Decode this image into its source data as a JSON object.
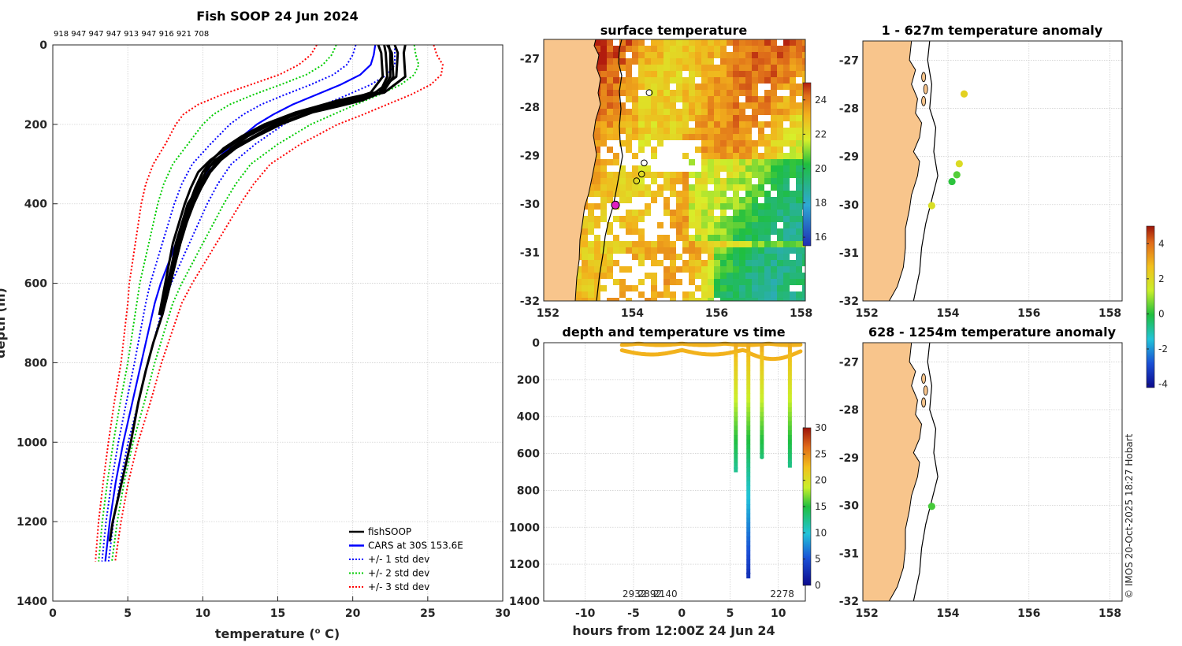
{
  "chart_data": [
    {
      "id": "profile",
      "type": "line",
      "title": "Fish SOOP 24 Jun 2024",
      "top_labels": "918 947 947 947 913 947 916 921 708",
      "xlabel": "temperature (",
      "xlabel_sup": "o",
      "xlabel_end": " C)",
      "ylabel": "depth (m)",
      "xlim": [
        0,
        30
      ],
      "ylim": [
        0,
        1400
      ],
      "xticks": [
        "0",
        "5",
        "10",
        "15",
        "20",
        "25",
        "30"
      ],
      "yticks": [
        "0",
        "200",
        "400",
        "600",
        "800",
        "1000",
        "1200",
        "1400"
      ],
      "legend": [
        {
          "label": "fishSOOP",
          "color": "#000000",
          "style": "solid"
        },
        {
          "label": "CARS at 30S 153.6E",
          "color": "#0000ff",
          "style": "solid"
        },
        {
          "label": "+/- 1 std dev",
          "color": "#0000ff",
          "style": "dotted"
        },
        {
          "label": "+/- 2 std dev",
          "color": "#00cc00",
          "style": "dotted"
        },
        {
          "label": "+/- 3 std dev",
          "color": "#ff0000",
          "style": "dotted"
        }
      ],
      "depth": [
        0,
        25,
        50,
        75,
        100,
        125,
        150,
        175,
        200,
        250,
        300,
        350,
        400,
        450,
        500,
        550,
        600,
        650,
        700,
        800,
        900,
        1000,
        1100,
        1200,
        1300
      ],
      "cars_mean": [
        21.5,
        21.4,
        21.2,
        20.5,
        19.2,
        17.6,
        16.0,
        14.7,
        13.6,
        12.0,
        10.6,
        9.8,
        9.2,
        8.7,
        8.2,
        7.7,
        7.2,
        6.8,
        6.5,
        5.9,
        5.3,
        4.7,
        4.2,
        3.8,
        3.5
      ],
      "cars_std": [
        1.3,
        1.4,
        1.6,
        1.8,
        2.0,
        2.1,
        2.1,
        2.0,
        1.8,
        1.5,
        1.3,
        1.2,
        1.1,
        1.0,
        0.9,
        0.8,
        0.7,
        0.6,
        0.55,
        0.45,
        0.4,
        0.33,
        0.28,
        0.25,
        0.22
      ],
      "fish_profiles": [
        {
          "depth": [
            0,
            20,
            80,
            120,
            140,
            155,
            170,
            200,
            230,
            260,
            290,
            320,
            360,
            400,
            450,
            500,
            560,
            620,
            680,
            750,
            820,
            900,
            1000,
            1100,
            1200,
            1250
          ],
          "temp": [
            22.3,
            22.6,
            22.7,
            22.0,
            19.8,
            18.2,
            16.6,
            14.5,
            13.0,
            11.9,
            11.1,
            10.4,
            9.8,
            9.3,
            8.9,
            8.5,
            8.1,
            7.7,
            7.3,
            6.7,
            6.2,
            5.7,
            5.2,
            4.6,
            4.0,
            3.8
          ]
        },
        {
          "depth": [
            0,
            20,
            80,
            120,
            140,
            155,
            170,
            200,
            230,
            260,
            290,
            320,
            360,
            400,
            450,
            500,
            560,
            620,
            680
          ],
          "temp": [
            23.5,
            23.4,
            23.5,
            22.1,
            19.4,
            17.8,
            16.4,
            14.8,
            13.4,
            12.1,
            11.0,
            10.0,
            9.5,
            9.1,
            8.7,
            8.3,
            8.0,
            7.6,
            7.3
          ]
        },
        {
          "depth": [
            0,
            20,
            80,
            120,
            140,
            155,
            170,
            200,
            230,
            260,
            290,
            320,
            360,
            400,
            450,
            500,
            560,
            620,
            680
          ],
          "temp": [
            22.8,
            23.0,
            22.9,
            21.5,
            19.0,
            17.6,
            16.2,
            14.1,
            12.6,
            11.4,
            10.6,
            10.0,
            9.6,
            9.2,
            8.8,
            8.4,
            8.0,
            7.6,
            7.2
          ]
        },
        {
          "depth": [
            0,
            20,
            80,
            120,
            140,
            155,
            170,
            200,
            230,
            260,
            290,
            320,
            360,
            400,
            450,
            500,
            560,
            620,
            680
          ],
          "temp": [
            22.1,
            22.2,
            22.3,
            21.8,
            20.2,
            18.6,
            17.0,
            15.0,
            13.4,
            12.0,
            10.8,
            10.2,
            9.7,
            9.0,
            8.6,
            8.2,
            7.9,
            7.5,
            7.1
          ]
        },
        {
          "depth": [
            0,
            20,
            80,
            120,
            140,
            155,
            170,
            200,
            230,
            260,
            290,
            320,
            360,
            400,
            450,
            500,
            560,
            620,
            680
          ],
          "temp": [
            21.7,
            21.9,
            22.0,
            21.2,
            19.6,
            18.0,
            16.5,
            14.3,
            12.8,
            11.6,
            10.5,
            9.7,
            9.2,
            8.8,
            8.4,
            8.0,
            7.7,
            7.4,
            7.1
          ]
        },
        {
          "depth": [
            0,
            20,
            80,
            120,
            140,
            155,
            170,
            200,
            230,
            260,
            290,
            320,
            360,
            400,
            450,
            500,
            560,
            620,
            680
          ],
          "temp": [
            22.4,
            22.5,
            22.5,
            21.9,
            20.6,
            19.0,
            17.3,
            15.2,
            13.6,
            12.2,
            11.2,
            10.5,
            9.9,
            9.4,
            8.9,
            8.5,
            8.1,
            7.7,
            7.3
          ]
        }
      ]
    },
    {
      "id": "sst",
      "type": "heatmap",
      "title": "surface temperature",
      "xlim": [
        151.9,
        158.1
      ],
      "ylim": [
        -32,
        -26.6
      ],
      "xticks": [
        "152",
        "154",
        "156",
        "158"
      ],
      "yticks": [
        "-27",
        "-28",
        "-29",
        "-30",
        "-31",
        "-32"
      ],
      "colorbar": {
        "range": [
          15.5,
          25.0
        ],
        "ticks": [
          "16",
          "18",
          "20",
          "22",
          "24"
        ]
      },
      "stations": [
        {
          "lon": 154.4,
          "lat": -27.7
        },
        {
          "lon": 154.28,
          "lat": -29.15
        },
        {
          "lon": 154.22,
          "lat": -29.38
        },
        {
          "lon": 154.1,
          "lat": -29.52
        },
        {
          "lon": 153.6,
          "lat": -30.02
        }
      ],
      "cars_site": {
        "lon": 153.6,
        "lat": -30.02
      }
    },
    {
      "id": "anomaly_upper",
      "type": "scatter",
      "title": "1 - 627m temperature anomaly",
      "xlim": [
        151.9,
        158.3
      ],
      "ylim": [
        -32,
        -26.6
      ],
      "xticks": [
        "152",
        "154",
        "156",
        "158"
      ],
      "yticks": [
        "-27",
        "-28",
        "-29",
        "-30",
        "-31",
        "-32"
      ],
      "points": [
        {
          "lon": 154.4,
          "lat": -27.7,
          "anomaly": 2.2
        },
        {
          "lon": 154.28,
          "lat": -29.15,
          "anomaly": 1.9
        },
        {
          "lon": 154.22,
          "lat": -29.38,
          "anomaly": 0.4
        },
        {
          "lon": 154.1,
          "lat": -29.52,
          "anomaly": 0.1
        },
        {
          "lon": 153.6,
          "lat": -30.02,
          "anomaly": 1.8
        }
      ]
    },
    {
      "id": "anomaly_lower",
      "type": "scatter",
      "title": "628 - 1254m temperature anomaly",
      "xlim": [
        151.9,
        158.3
      ],
      "ylim": [
        -32,
        -26.6
      ],
      "xticks": [
        "152",
        "154",
        "156",
        "158"
      ],
      "yticks": [
        "-27",
        "-28",
        "-29",
        "-30",
        "-31",
        "-32"
      ],
      "points": [
        {
          "lon": 153.6,
          "lat": -30.02,
          "anomaly": 0.3
        }
      ],
      "colorbar": {
        "range": [
          -4.2,
          5.0
        ],
        "ticks": [
          "4",
          "2",
          "0",
          "-2",
          "-4"
        ],
        "tick_values": [
          4,
          2,
          0,
          -2,
          -4
        ]
      }
    },
    {
      "id": "timeseries",
      "type": "scatter",
      "title": "depth and temperature vs time",
      "xlabel": "hours from 12:00Z 24 Jun 24",
      "xlim": [
        -14.3,
        12.8
      ],
      "ylim": [
        0,
        1400
      ],
      "xticks": [
        "-10",
        "-5",
        "0",
        "5",
        "10"
      ],
      "yticks": [
        "0",
        "200",
        "400",
        "600",
        "800",
        "1000",
        "1200",
        "1400"
      ],
      "casts": [
        {
          "t": 5.6,
          "maxdepth": 680
        },
        {
          "t": 6.9,
          "maxdepth": 1250
        },
        {
          "t": 8.3,
          "maxdepth": 620
        },
        {
          "t": 11.2,
          "maxdepth": 650
        }
      ],
      "surface_track": {
        "t_start": -6.2,
        "t_end": 12.3,
        "depth_range": [
          0,
          90
        ]
      },
      "bottom_labels": [
        {
          "t": -4.9,
          "text": "2932"
        },
        {
          "t": -3.3,
          "text": "2892"
        },
        {
          "t": -1.7,
          "text": "2140"
        },
        {
          "t": 10.4,
          "text": "2278"
        }
      ],
      "colorbar": {
        "range": [
          0,
          30
        ],
        "ticks": [
          "30",
          "25",
          "20",
          "15",
          "10",
          "5",
          "0"
        ],
        "tick_values": [
          30,
          25,
          20,
          15,
          10,
          5,
          0
        ]
      }
    }
  ],
  "footer": "© IMOS 20-Oct-2025 18:27 Hobart",
  "colors": {
    "land": "#f8c58c",
    "coast": "#000000",
    "grid": "#d0d0d0"
  }
}
